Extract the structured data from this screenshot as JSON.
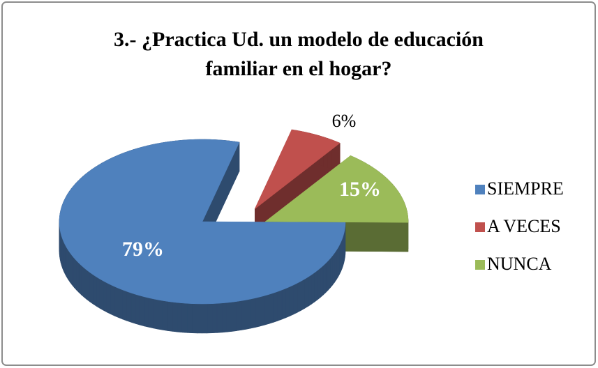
{
  "chart_data": {
    "type": "pie3d",
    "title": "3.- ¿Practica Ud. un modelo de educación familiar en el hogar?",
    "categories": [
      "SIEMPRE",
      "A VECES",
      "NUNCA"
    ],
    "values": [
      79,
      6,
      15
    ],
    "value_labels": [
      "79%",
      "6%",
      "15%"
    ],
    "colors": [
      "#4f81bd",
      "#c0504d",
      "#9bbb59"
    ],
    "legend": "right"
  }
}
